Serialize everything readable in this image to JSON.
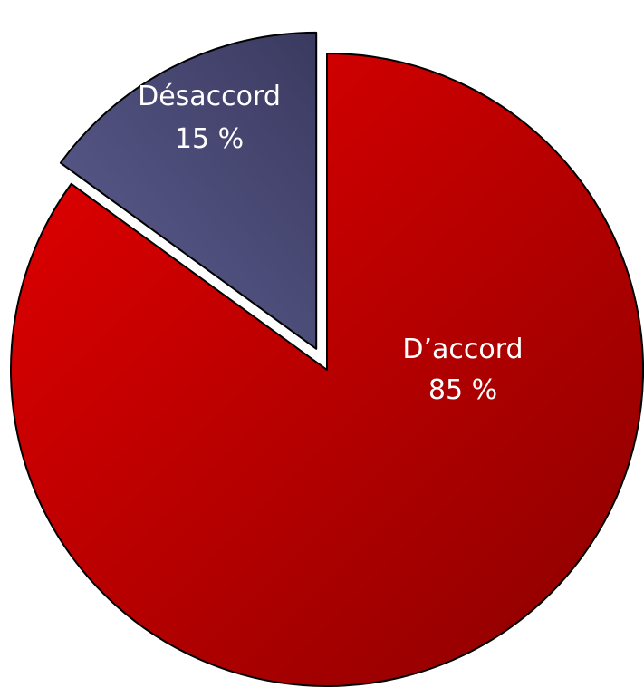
{
  "chart_data": {
    "type": "pie",
    "slices": [
      {
        "label": "D’accord",
        "value": 85,
        "display": "85 %",
        "color": "#e60000",
        "color_dark": "#8a0000",
        "exploded": false
      },
      {
        "label": "Désaccord",
        "value": 15,
        "display": "15 %",
        "color": "#5f5f93",
        "color_dark": "#3a3a60",
        "exploded": true
      }
    ],
    "legend": "none"
  }
}
